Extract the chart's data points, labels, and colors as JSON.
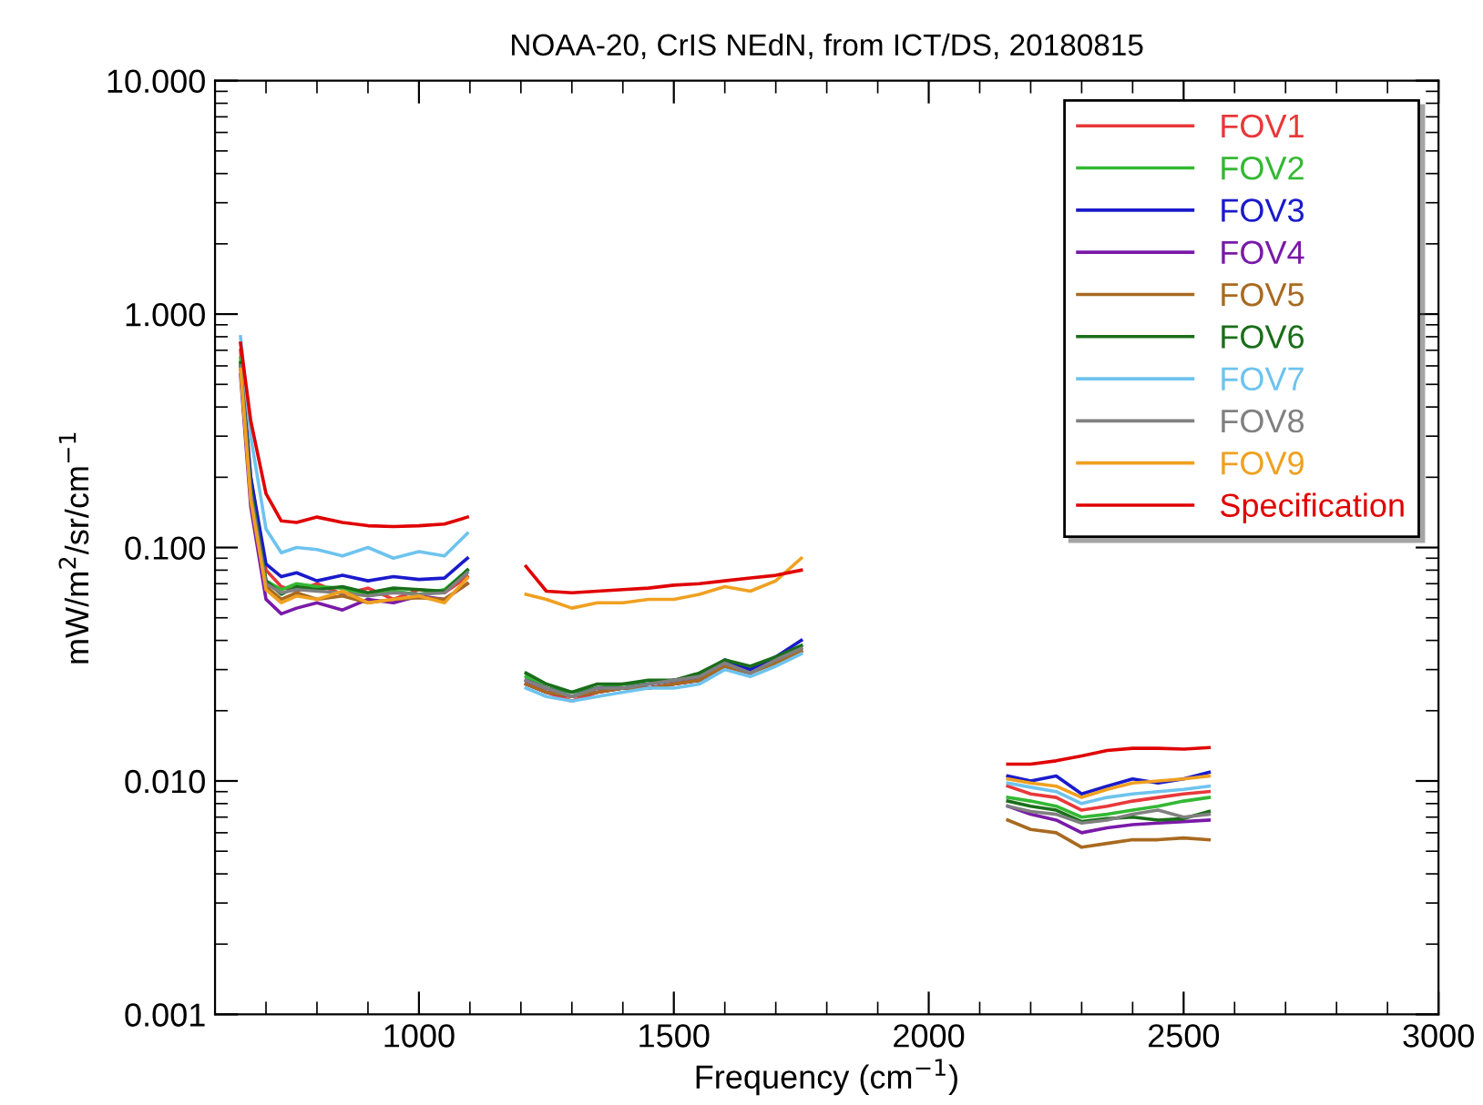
{
  "chart_data": {
    "type": "line",
    "title": "NOAA-20, CrIS NEdN, from ICT/DS, 20180815",
    "xlabel": "Frequency (cm$^{−1}$)",
    "ylabel": "mW/m$^{2}$/sr/cm$^{−1}$",
    "x": [
      650,
      670,
      700,
      730,
      760,
      800,
      850,
      900,
      950,
      1000,
      1050,
      1095,
      1150,
      1210,
      1250,
      1300,
      1350,
      1400,
      1450,
      1500,
      1550,
      1600,
      1650,
      1700,
      1750,
      1950,
      2155,
      2200,
      2250,
      2300,
      2350,
      2400,
      2450,
      2500,
      2550
    ],
    "xlim": [
      600,
      3000
    ],
    "xticks": [
      1000,
      1500,
      2000,
      2500,
      3000
    ],
    "ylim": [
      0.001,
      10
    ],
    "yticks": [
      {
        "value": 0.001,
        "label": "0.001"
      },
      {
        "value": 0.01,
        "label": "0.010"
      },
      {
        "value": 0.1,
        "label": "0.100"
      },
      {
        "value": 1,
        "label": "1.000"
      },
      {
        "value": 10,
        "label": "10.000"
      }
    ],
    "log": "y",
    "grid": false,
    "legend": "top right",
    "line_style": "solid",
    "marker": "none",
    "series": [
      {
        "name": "FOV1",
        "color": "#e8383a",
        "values": [
          0.7,
          0.2,
          0.08,
          0.068,
          0.065,
          0.07,
          0.063,
          0.067,
          0.06,
          0.066,
          0.064,
          0.075,
          null,
          0.026,
          0.024,
          0.022,
          0.024,
          0.025,
          0.025,
          0.026,
          0.027,
          0.031,
          0.029,
          0.033,
          0.037,
          null,
          0.0095,
          0.0088,
          0.0085,
          0.0075,
          0.0078,
          0.0082,
          0.0085,
          0.0088,
          0.009
        ]
      },
      {
        "name": "FOV2",
        "color": "#33b833",
        "values": [
          0.65,
          0.18,
          0.072,
          0.066,
          0.07,
          0.068,
          0.067,
          0.062,
          0.065,
          0.063,
          0.066,
          0.08,
          null,
          0.028,
          0.025,
          0.024,
          0.025,
          0.026,
          0.026,
          0.027,
          0.028,
          0.032,
          0.03,
          0.034,
          0.038,
          null,
          0.0085,
          0.0082,
          0.0078,
          0.007,
          0.0072,
          0.0075,
          0.0078,
          0.0082,
          0.0085
        ]
      },
      {
        "name": "FOV3",
        "color": "#1a1acc",
        "values": [
          0.6,
          0.2,
          0.085,
          0.075,
          0.078,
          0.072,
          0.076,
          0.072,
          0.075,
          0.073,
          0.074,
          0.09,
          null,
          0.027,
          0.025,
          0.023,
          0.025,
          0.025,
          0.026,
          0.027,
          0.028,
          0.033,
          0.03,
          0.034,
          0.04,
          null,
          0.0105,
          0.01,
          0.0105,
          0.0088,
          0.0095,
          0.0102,
          0.0098,
          0.0102,
          0.0109
        ]
      },
      {
        "name": "FOV4",
        "color": "#7a1aa8",
        "values": [
          0.55,
          0.15,
          0.06,
          0.052,
          0.055,
          0.058,
          0.054,
          0.06,
          0.058,
          0.062,
          0.06,
          0.07,
          null,
          0.026,
          0.024,
          0.023,
          0.024,
          0.025,
          0.025,
          0.026,
          0.027,
          0.031,
          0.029,
          0.033,
          0.036,
          null,
          0.0078,
          0.0072,
          0.0068,
          0.006,
          0.0063,
          0.0065,
          0.0066,
          0.0067,
          0.0068
        ]
      },
      {
        "name": "FOV5",
        "color": "#a86a20",
        "values": [
          0.6,
          0.17,
          0.068,
          0.06,
          0.064,
          0.06,
          0.062,
          0.058,
          0.06,
          0.061,
          0.06,
          0.07,
          null,
          0.026,
          0.024,
          0.023,
          0.024,
          0.025,
          0.025,
          0.026,
          0.027,
          0.031,
          0.029,
          0.032,
          0.036,
          null,
          0.0068,
          0.0062,
          0.006,
          0.0052,
          0.0054,
          0.0056,
          0.0056,
          0.0057,
          0.0056
        ]
      },
      {
        "name": "FOV6",
        "color": "#1a6e1a",
        "values": [
          0.62,
          0.18,
          0.072,
          0.063,
          0.068,
          0.066,
          0.068,
          0.064,
          0.067,
          0.066,
          0.065,
          0.08,
          null,
          0.029,
          0.026,
          0.024,
          0.026,
          0.026,
          0.027,
          0.027,
          0.029,
          0.033,
          0.031,
          0.034,
          0.038,
          null,
          0.0082,
          0.0078,
          0.0075,
          0.0067,
          0.0069,
          0.007,
          0.0068,
          0.0069,
          0.0074
        ]
      },
      {
        "name": "FOV7",
        "color": "#6ec3ee",
        "values": [
          0.8,
          0.3,
          0.12,
          0.095,
          0.1,
          0.098,
          0.092,
          0.1,
          0.09,
          0.096,
          0.092,
          0.115,
          null,
          0.025,
          0.023,
          0.022,
          0.023,
          0.024,
          0.025,
          0.025,
          0.026,
          0.03,
          0.028,
          0.031,
          0.035,
          null,
          0.0098,
          0.0094,
          0.009,
          0.008,
          0.0085,
          0.0088,
          0.009,
          0.0092,
          0.0095
        ]
      },
      {
        "name": "FOV8",
        "color": "#808080",
        "values": [
          0.6,
          0.17,
          0.07,
          0.064,
          0.066,
          0.065,
          0.064,
          0.062,
          0.064,
          0.063,
          0.064,
          0.078,
          null,
          0.027,
          0.025,
          0.023,
          0.025,
          0.025,
          0.026,
          0.027,
          0.028,
          0.032,
          0.029,
          0.033,
          0.037,
          null,
          0.0078,
          0.0074,
          0.0072,
          0.0066,
          0.0068,
          0.0072,
          0.0075,
          0.007,
          0.0072
        ]
      },
      {
        "name": "FOV9",
        "color": "#f0a020",
        "values": [
          0.58,
          0.16,
          0.066,
          0.058,
          0.062,
          0.06,
          0.065,
          0.058,
          0.06,
          0.062,
          0.058,
          0.074,
          null,
          0.063,
          0.06,
          0.055,
          0.058,
          0.058,
          0.06,
          0.06,
          0.063,
          0.068,
          0.065,
          0.072,
          0.09,
          null,
          0.0102,
          0.0098,
          0.0095,
          0.0085,
          0.0092,
          0.0098,
          0.01,
          0.0102,
          0.0105
        ]
      },
      {
        "name": "Specification",
        "color": "#e00000",
        "values": [
          0.75,
          0.35,
          0.17,
          0.13,
          0.128,
          0.135,
          0.128,
          0.124,
          0.123,
          0.124,
          0.126,
          0.135,
          null,
          0.083,
          0.065,
          0.064,
          0.065,
          0.066,
          0.067,
          0.069,
          0.07,
          0.072,
          0.074,
          0.076,
          0.08,
          null,
          0.0118,
          0.0118,
          0.0122,
          0.0128,
          0.0135,
          0.0138,
          0.0138,
          0.0137,
          0.0139
        ]
      }
    ]
  }
}
